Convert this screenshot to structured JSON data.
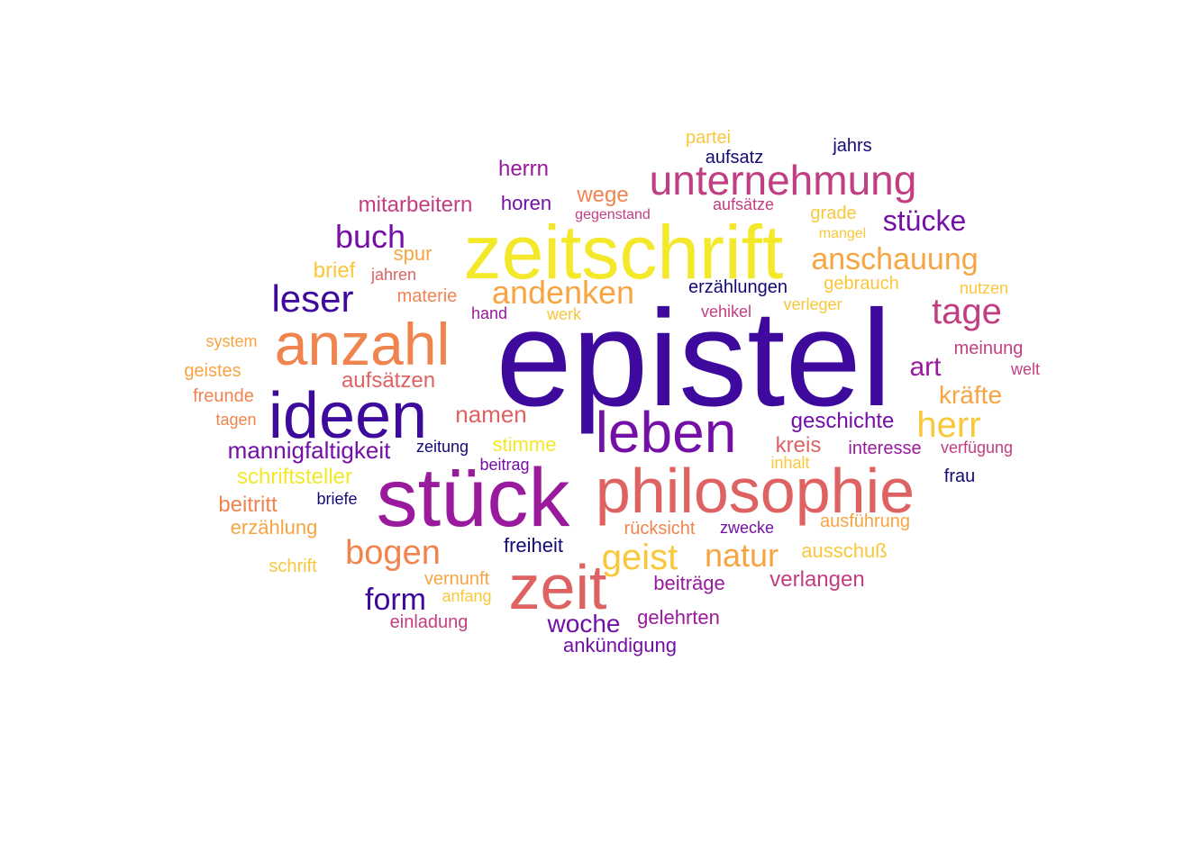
{
  "colors": {
    "navy": "#140a75",
    "indigo": "#3e0a9e",
    "purple": "#7410a6",
    "magenta": "#9a1a9d",
    "rose": "#c23e82",
    "coral": "#de6262",
    "orange": "#f0844f",
    "amber": "#f7a542",
    "gold": "#f9c73a",
    "yellow": "#f3e82a"
  },
  "words": [
    {
      "text": "epistel",
      "color": "indigo"
    },
    {
      "text": "zeitschrift",
      "color": "yellow"
    },
    {
      "text": "stück",
      "color": "magenta"
    },
    {
      "text": "philosophie",
      "color": "coral"
    },
    {
      "text": "ideen",
      "color": "indigo"
    },
    {
      "text": "anzahl",
      "color": "orange"
    },
    {
      "text": "leben",
      "color": "purple"
    },
    {
      "text": "zeit",
      "color": "coral"
    },
    {
      "text": "unternehmung",
      "color": "rose"
    },
    {
      "text": "andenken",
      "color": "amber"
    },
    {
      "text": "leser",
      "color": "indigo"
    },
    {
      "text": "anschauung",
      "color": "amber"
    },
    {
      "text": "tage",
      "color": "rose"
    },
    {
      "text": "bogen",
      "color": "orange"
    },
    {
      "text": "geist",
      "color": "gold"
    },
    {
      "text": "natur",
      "color": "amber"
    },
    {
      "text": "herr",
      "color": "gold"
    },
    {
      "text": "buch",
      "color": "purple"
    },
    {
      "text": "stücke",
      "color": "purple"
    },
    {
      "text": "form",
      "color": "indigo"
    },
    {
      "text": "art",
      "color": "magenta"
    },
    {
      "text": "woche",
      "color": "purple"
    },
    {
      "text": "kräfte",
      "color": "amber"
    },
    {
      "text": "namen",
      "color": "coral"
    },
    {
      "text": "mannigfaltigkeit",
      "color": "purple"
    },
    {
      "text": "geschichte",
      "color": "purple"
    },
    {
      "text": "aufsätzen",
      "color": "coral"
    },
    {
      "text": "kreis",
      "color": "coral"
    },
    {
      "text": "herrn",
      "color": "magenta"
    },
    {
      "text": "mitarbeitern",
      "color": "rose"
    },
    {
      "text": "wege",
      "color": "orange"
    },
    {
      "text": "verlangen",
      "color": "rose"
    },
    {
      "text": "schriftsteller",
      "color": "yellow"
    },
    {
      "text": "beitritt",
      "color": "orange"
    },
    {
      "text": "erzählung",
      "color": "amber"
    },
    {
      "text": "beiträge",
      "color": "magenta"
    },
    {
      "text": "freiheit",
      "color": "navy"
    },
    {
      "text": "ausschuß",
      "color": "gold"
    },
    {
      "text": "stimme",
      "color": "yellow"
    },
    {
      "text": "gelehrten",
      "color": "magenta"
    },
    {
      "text": "ankündigung",
      "color": "purple"
    },
    {
      "text": "interesse",
      "color": "magenta"
    },
    {
      "text": "erzählungen",
      "color": "navy"
    },
    {
      "text": "brief",
      "color": "gold"
    },
    {
      "text": "spur",
      "color": "amber"
    },
    {
      "text": "gebrauch",
      "color": "gold"
    },
    {
      "text": "horen",
      "color": "purple"
    },
    {
      "text": "rücksicht",
      "color": "orange"
    },
    {
      "text": "ausführung",
      "color": "amber"
    },
    {
      "text": "vernunft",
      "color": "amber"
    },
    {
      "text": "meinung",
      "color": "rose"
    },
    {
      "text": "jahrs",
      "color": "navy"
    },
    {
      "text": "aufsatz",
      "color": "navy"
    },
    {
      "text": "partei",
      "color": "gold"
    },
    {
      "text": "grade",
      "color": "gold"
    },
    {
      "text": "materie",
      "color": "orange"
    },
    {
      "text": "geistes",
      "color": "amber"
    },
    {
      "text": "freunde",
      "color": "orange"
    },
    {
      "text": "einladung",
      "color": "rose"
    },
    {
      "text": "frau",
      "color": "navy"
    },
    {
      "text": "zwecke",
      "color": "purple"
    },
    {
      "text": "schrift",
      "color": "gold"
    },
    {
      "text": "aufsätze",
      "color": "rose"
    },
    {
      "text": "system",
      "color": "amber"
    },
    {
      "text": "zeitung",
      "color": "navy"
    },
    {
      "text": "briefe",
      "color": "navy"
    },
    {
      "text": "hand",
      "color": "magenta"
    },
    {
      "text": "vehikel",
      "color": "rose"
    },
    {
      "text": "verleger",
      "color": "gold"
    },
    {
      "text": "nutzen",
      "color": "gold"
    },
    {
      "text": "verfügung",
      "color": "rose"
    },
    {
      "text": "tagen",
      "color": "orange"
    },
    {
      "text": "jahren",
      "color": "coral"
    },
    {
      "text": "werk",
      "color": "gold"
    },
    {
      "text": "gegenstand",
      "color": "rose"
    },
    {
      "text": "welt",
      "color": "rose"
    },
    {
      "text": "beitrag",
      "color": "purple"
    },
    {
      "text": "inhalt",
      "color": "gold"
    },
    {
      "text": "anfang",
      "color": "gold"
    },
    {
      "text": "mangel",
      "color": "gold"
    }
  ]
}
